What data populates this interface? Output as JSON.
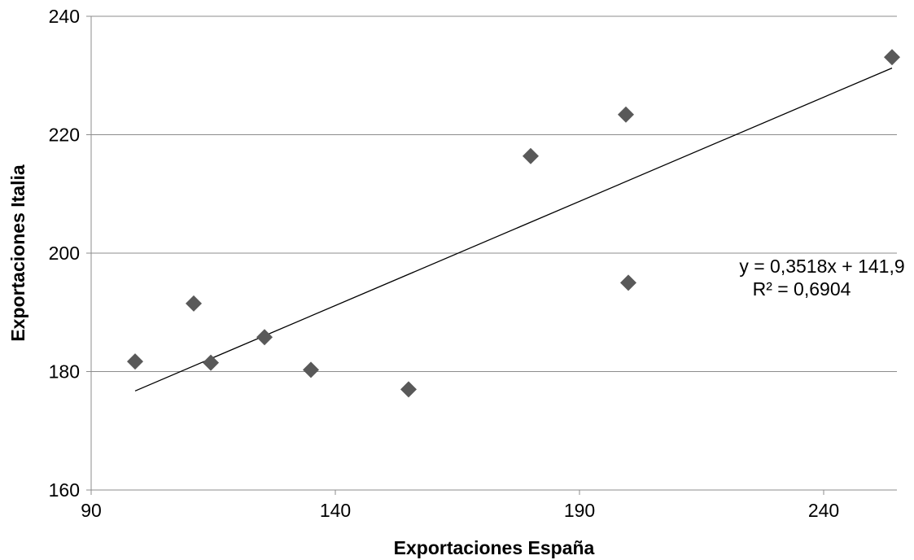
{
  "chart_data": {
    "type": "scatter",
    "xlabel": "Exportaciones España",
    "ylabel": "Exportaciones Italia",
    "xlim": [
      90,
      255
    ],
    "ylim": [
      160,
      240
    ],
    "xticks": [
      90,
      140,
      190,
      240
    ],
    "yticks": [
      160,
      180,
      200,
      220,
      240
    ],
    "grid": "horizontal",
    "marker": "diamond",
    "marker_color": "#595959",
    "trendline_color": "#000000",
    "points": [
      {
        "x": 99,
        "y": 181.7
      },
      {
        "x": 111,
        "y": 191.5
      },
      {
        "x": 114.5,
        "y": 181.5
      },
      {
        "x": 125.5,
        "y": 185.8
      },
      {
        "x": 135,
        "y": 180.3
      },
      {
        "x": 155,
        "y": 177
      },
      {
        "x": 180,
        "y": 216.4
      },
      {
        "x": 199.5,
        "y": 223.4
      },
      {
        "x": 200,
        "y": 195
      },
      {
        "x": 254,
        "y": 233.1
      }
    ],
    "trendline": {
      "type": "linear",
      "slope": 0.3518,
      "intercept": 141.9,
      "x_range": [
        99,
        254
      ],
      "equation_label": "y = 0,3518x + 141,9",
      "r2_label": "R² = 0,6904"
    }
  }
}
